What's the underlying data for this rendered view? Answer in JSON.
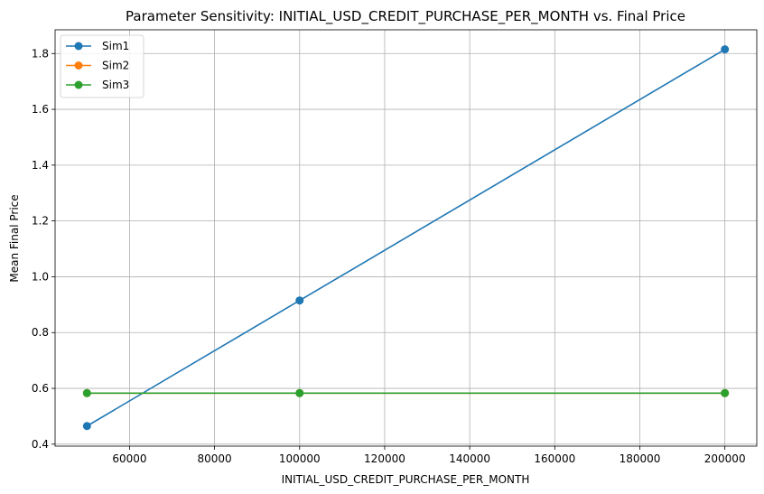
{
  "chart_data": {
    "type": "line",
    "title": "Parameter Sensitivity: INITIAL_USD_CREDIT_PURCHASE_PER_MONTH vs. Final Price",
    "xlabel": "INITIAL_USD_CREDIT_PURCHASE_PER_MONTH",
    "ylabel": "Mean Final Price",
    "xlim": [
      42500,
      207500
    ],
    "ylim": [
      0.393,
      1.885
    ],
    "xticks": [
      60000,
      80000,
      100000,
      120000,
      140000,
      160000,
      180000,
      200000
    ],
    "yticks": [
      0.4,
      0.6,
      0.8,
      1.0,
      1.2,
      1.4,
      1.6,
      1.8
    ],
    "xtick_labels": [
      "60000",
      "80000",
      "100000",
      "120000",
      "140000",
      "160000",
      "180000",
      "200000"
    ],
    "ytick_labels": [
      "0.4",
      "0.6",
      "0.8",
      "1.0",
      "1.2",
      "1.4",
      "1.6",
      "1.8"
    ],
    "grid": true,
    "legend_position": "top-left",
    "x": [
      50000,
      100000,
      200000
    ],
    "series": [
      {
        "name": "Sim1",
        "color": "#1f77b4",
        "values": [
          0.465,
          0.915,
          1.815
        ]
      },
      {
        "name": "Sim2",
        "color": "#ff7f0e",
        "values": [
          0.583,
          0.583,
          0.583
        ]
      },
      {
        "name": "Sim3",
        "color": "#2ca02c",
        "values": [
          0.583,
          0.583,
          0.583
        ]
      }
    ]
  }
}
